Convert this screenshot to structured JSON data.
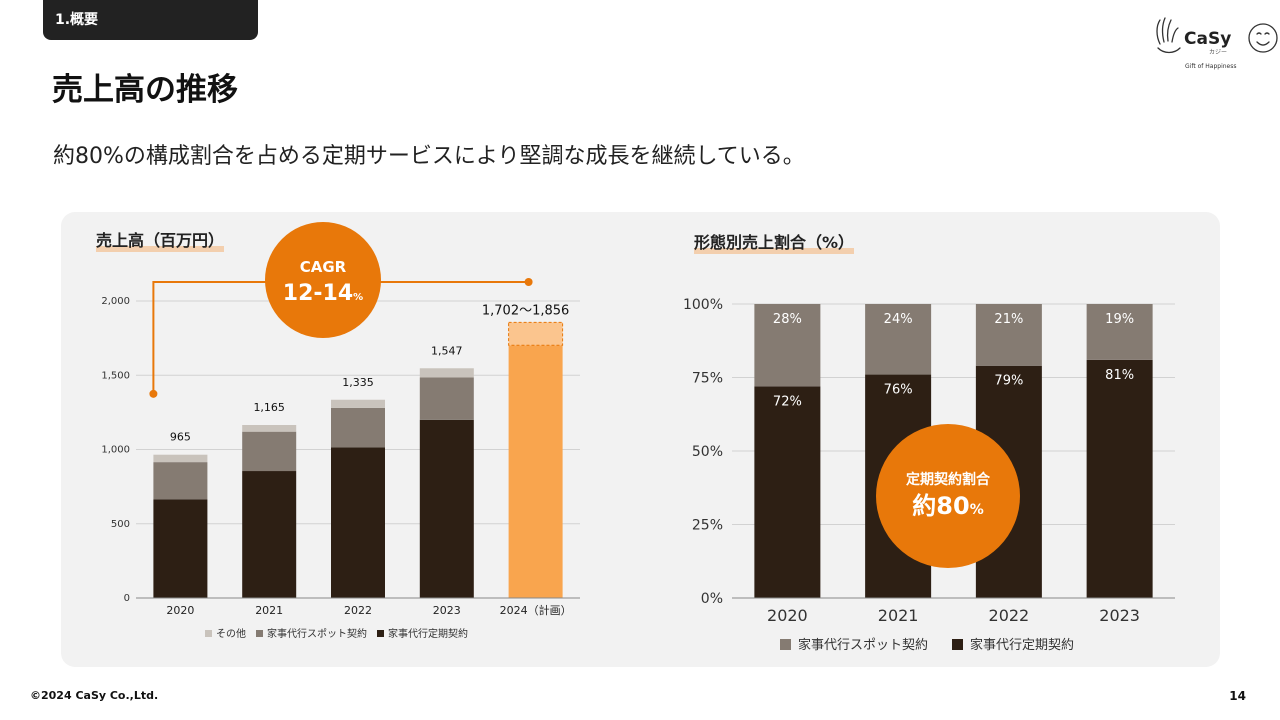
{
  "header": {
    "section_tab": "1.概要",
    "title": "売上高の推移",
    "subtitle": "約80%の構成割合を占める定期サービスにより堅調な成長を継続している。"
  },
  "logo": {
    "brand": "CaSy",
    "kana": "カジー",
    "tagline": "Gift of Happiness"
  },
  "footer": {
    "copyright": "©2024 CaSy Co.,Ltd.",
    "page_number": "14"
  },
  "colors": {
    "orange": "#E8780A",
    "light_orange": "#F9A54E",
    "dark": "#2D1F14",
    "gray": "#857B72",
    "light_gray": "#C9C3BC"
  },
  "chart_data": [
    {
      "type": "bar",
      "stacked": true,
      "title": "売上高（百万円）",
      "categories": [
        "2020",
        "2021",
        "2022",
        "2023",
        "2024（計画）"
      ],
      "series": [
        {
          "name": "家事代行定期契約",
          "values": [
            665,
            855,
            1015,
            1200,
            null
          ]
        },
        {
          "name": "家事代行スポット契約",
          "values": [
            250,
            265,
            265,
            285,
            null
          ]
        },
        {
          "name": "その他",
          "values": [
            50,
            45,
            55,
            62,
            null
          ]
        }
      ],
      "totals_labels": [
        "965",
        "1,165",
        "1,335",
        "1,547",
        "1,702〜1,856"
      ],
      "plan_range": [
        1702,
        1856
      ],
      "yticks": [
        "0",
        "500",
        "1,000",
        "1,500",
        "2,000"
      ],
      "ylim": [
        0,
        2000
      ],
      "legend": [
        "その他",
        "家事代行スポット契約",
        "家事代行定期契約"
      ],
      "annotation": {
        "label": "CAGR",
        "value": "12-14",
        "unit": "%"
      }
    },
    {
      "type": "bar",
      "stacked": true,
      "percent": true,
      "title": "形態別売上割合（%）",
      "categories": [
        "2020",
        "2021",
        "2022",
        "2023"
      ],
      "series": [
        {
          "name": "家事代行定期契約",
          "values": [
            72,
            76,
            79,
            81
          ],
          "labels": [
            "72%",
            "76%",
            "79%",
            "81%"
          ]
        },
        {
          "name": "家事代行スポット契約",
          "values": [
            28,
            24,
            21,
            19
          ],
          "labels": [
            "28%",
            "24%",
            "21%",
            "19%"
          ]
        }
      ],
      "yticks": [
        "0%",
        "25%",
        "50%",
        "75%",
        "100%"
      ],
      "ylim": [
        0,
        100
      ],
      "legend": [
        "家事代行スポット契約",
        "家事代行定期契約"
      ],
      "annotation": {
        "label": "定期契約割合",
        "value": "約80",
        "unit": "%"
      }
    }
  ]
}
